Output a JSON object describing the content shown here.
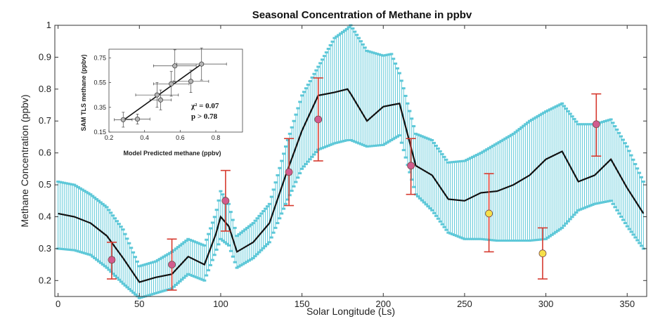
{
  "chart_data": [
    {
      "type": "line",
      "title": "Seasonal Concentration of Methane in ppbv",
      "xlabel": "Solar Longitude (Ls)",
      "ylabel": "Methane Concentration (ppbv)",
      "xlim": [
        -2,
        362
      ],
      "ylim": [
        0.15,
        1.0
      ],
      "xticks": [
        "0",
        "50",
        "100",
        "150",
        "200",
        "250",
        "300",
        "350"
      ],
      "yticks": [
        "0.2",
        "0.3",
        "0.4",
        "0.5",
        "0.6",
        "0.7",
        "0.8",
        "0.9",
        "1"
      ],
      "grid": false,
      "colors": {
        "model": "#111111",
        "band": "#5ec8d8",
        "measured": "#d15c8e",
        "measured_alt": "#f6e04a",
        "errorbar": "#d63a2f"
      },
      "model": {
        "x": [
          0,
          10,
          20,
          30,
          40,
          50,
          60,
          70,
          80,
          90,
          97,
          100,
          105,
          110,
          120,
          130,
          140,
          150,
          160,
          170,
          178,
          180,
          190,
          200,
          205,
          210,
          220,
          230,
          240,
          250,
          260,
          270,
          280,
          290,
          300,
          310,
          320,
          330,
          340,
          350,
          360
        ],
        "y": [
          0.41,
          0.4,
          0.38,
          0.34,
          0.27,
          0.195,
          0.21,
          0.22,
          0.275,
          0.25,
          0.345,
          0.4,
          0.37,
          0.29,
          0.32,
          0.38,
          0.53,
          0.67,
          0.78,
          0.79,
          0.8,
          0.785,
          0.7,
          0.745,
          0.75,
          0.755,
          0.56,
          0.53,
          0.455,
          0.45,
          0.475,
          0.48,
          0.5,
          0.53,
          0.58,
          0.605,
          0.51,
          0.53,
          0.58,
          0.49,
          0.41
        ],
        "lower": [
          0.3,
          0.295,
          0.28,
          0.24,
          0.19,
          0.145,
          0.16,
          0.175,
          0.22,
          0.2,
          0.29,
          0.33,
          0.31,
          0.24,
          0.27,
          0.32,
          0.44,
          0.55,
          0.61,
          0.63,
          0.64,
          0.64,
          0.62,
          0.625,
          0.64,
          0.655,
          0.47,
          0.42,
          0.35,
          0.33,
          0.33,
          0.325,
          0.325,
          0.325,
          0.33,
          0.365,
          0.42,
          0.44,
          0.45,
          0.37,
          0.3
        ],
        "upper": [
          0.51,
          0.5,
          0.47,
          0.43,
          0.36,
          0.245,
          0.26,
          0.29,
          0.33,
          0.31,
          0.41,
          0.48,
          0.44,
          0.34,
          0.38,
          0.44,
          0.62,
          0.78,
          0.87,
          0.96,
          0.99,
          1.0,
          0.92,
          0.905,
          0.91,
          0.85,
          0.66,
          0.64,
          0.57,
          0.575,
          0.6,
          0.63,
          0.66,
          0.7,
          0.73,
          0.755,
          0.69,
          0.69,
          0.705,
          0.62,
          0.51
        ]
      },
      "measurements": [
        {
          "x": 33,
          "y": 0.265,
          "err_low": 0.205,
          "err_high": 0.32,
          "style": "measured"
        },
        {
          "x": 70,
          "y": 0.25,
          "err_low": 0.17,
          "err_high": 0.33,
          "style": "measured"
        },
        {
          "x": 103,
          "y": 0.45,
          "err_low": 0.355,
          "err_high": 0.545,
          "style": "measured"
        },
        {
          "x": 142,
          "y": 0.54,
          "err_low": 0.435,
          "err_high": 0.645,
          "style": "measured"
        },
        {
          "x": 160,
          "y": 0.705,
          "err_low": 0.575,
          "err_high": 0.835,
          "style": "measured"
        },
        {
          "x": 217,
          "y": 0.56,
          "err_low": 0.47,
          "err_high": 0.645,
          "style": "measured"
        },
        {
          "x": 265,
          "y": 0.41,
          "err_low": 0.29,
          "err_high": 0.535,
          "style": "measured_alt"
        },
        {
          "x": 298,
          "y": 0.285,
          "err_low": 0.205,
          "err_high": 0.365,
          "style": "measured_alt"
        },
        {
          "x": 331,
          "y": 0.69,
          "err_low": 0.59,
          "err_high": 0.785,
          "style": "measured"
        }
      ]
    },
    {
      "type": "scatter",
      "xlabel": "Model Predicted methane (ppbv)",
      "ylabel": "SAM TLS methane (ppbv)",
      "xlim": [
        0.2,
        0.95
      ],
      "ylim": [
        0.15,
        0.82
      ],
      "xticks": [
        "0.2",
        "0.4",
        "0.6",
        "0.8"
      ],
      "yticks": [
        "0.15",
        "0.35",
        "0.55",
        "0.75"
      ],
      "stats": {
        "chi": "χ² = 0.07",
        "p": "p > 0.78"
      },
      "fit": {
        "x": [
          0.28,
          0.72
        ],
        "y": [
          0.245,
          0.7
        ]
      },
      "points": [
        {
          "x": 0.28,
          "y": 0.25,
          "ex": 0.05,
          "ey": 0.06
        },
        {
          "x": 0.36,
          "y": 0.255,
          "ex": 0.07,
          "ey": 0.04
        },
        {
          "x": 0.47,
          "y": 0.45,
          "ex": 0.12,
          "ey": 0.1
        },
        {
          "x": 0.49,
          "y": 0.41,
          "ex": 0.06,
          "ey": 0.08
        },
        {
          "x": 0.55,
          "y": 0.54,
          "ex": 0.1,
          "ey": 0.1
        },
        {
          "x": 0.57,
          "y": 0.685,
          "ex": 0.12,
          "ey": 0.13
        },
        {
          "x": 0.66,
          "y": 0.56,
          "ex": 0.1,
          "ey": 0.09
        },
        {
          "x": 0.72,
          "y": 0.7,
          "ex": 0.14,
          "ey": 0.13
        }
      ]
    }
  ]
}
